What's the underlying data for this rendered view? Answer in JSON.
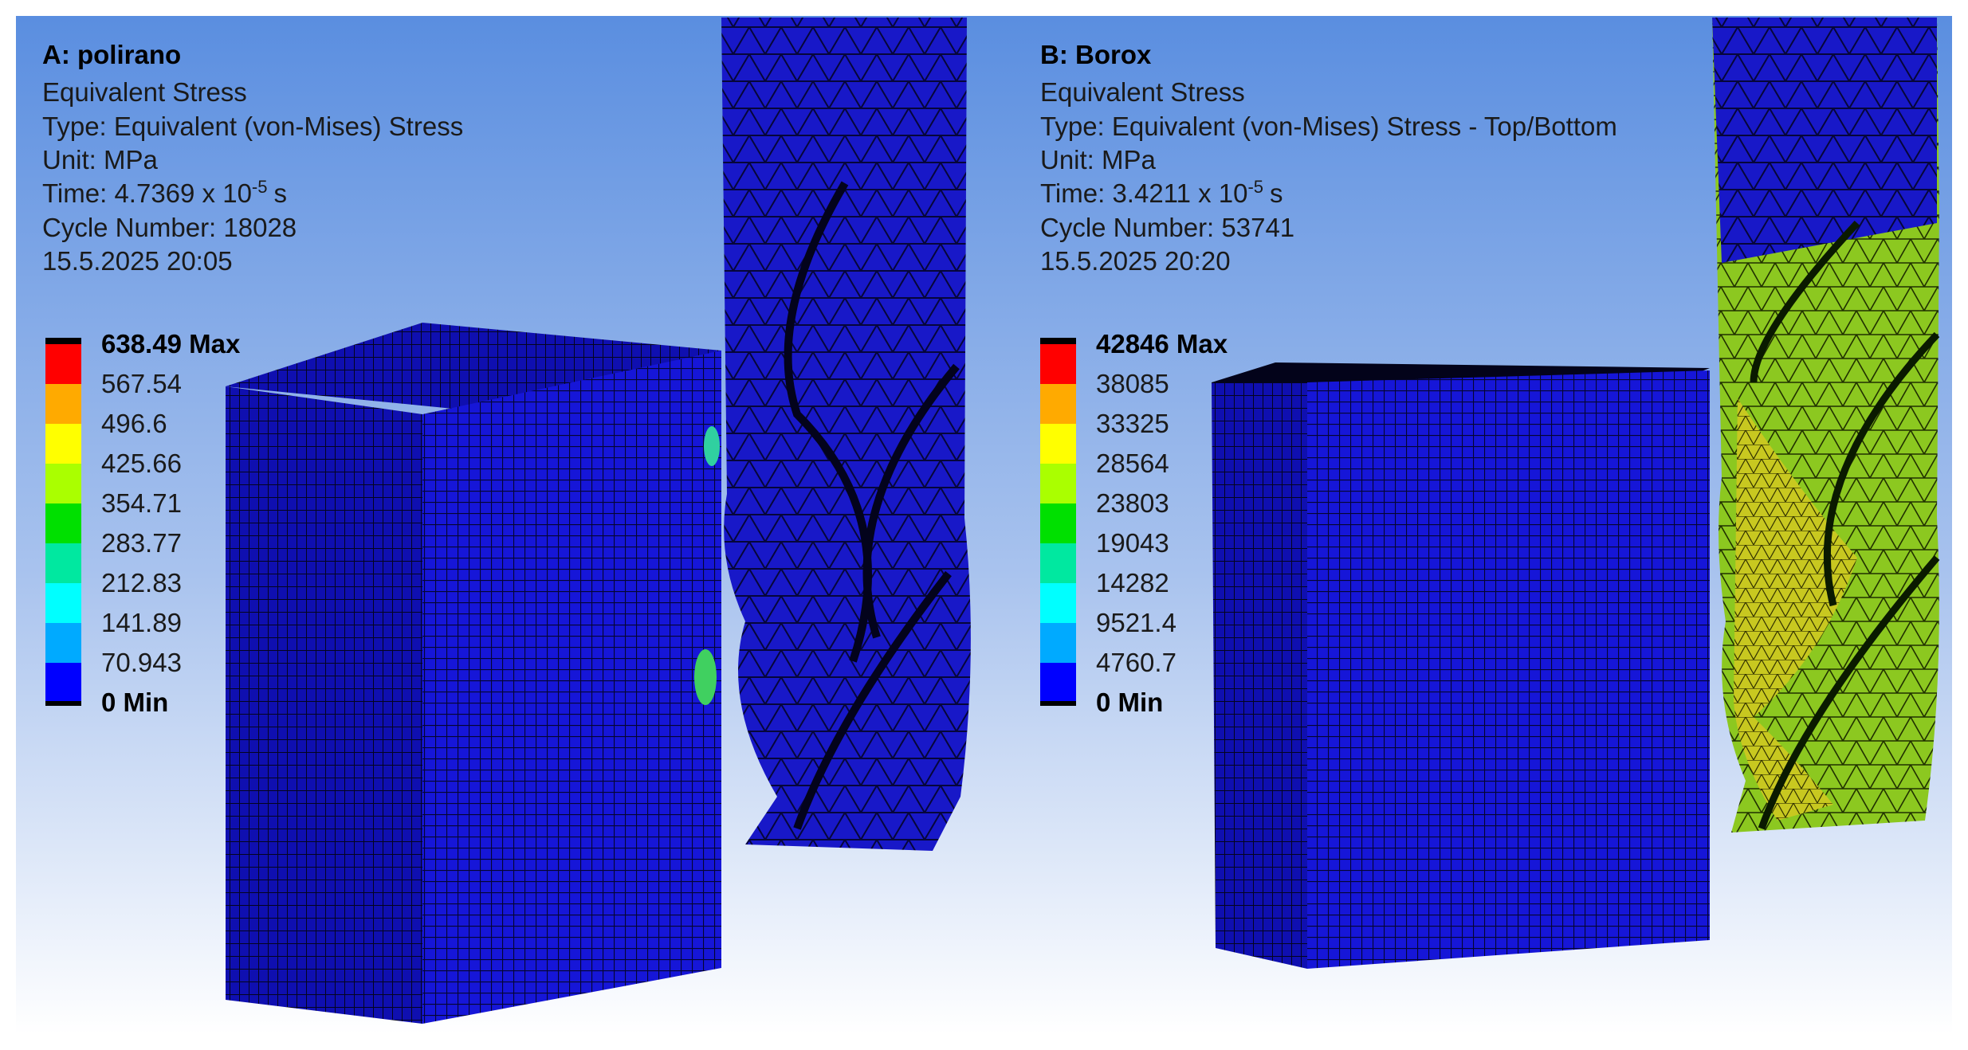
{
  "panels": [
    {
      "title": "A: polirano",
      "result": "Equivalent Stress",
      "type": "Type: Equivalent (von-Mises) Stress",
      "unit": "Unit: MPa",
      "time": {
        "text": "Time: 4.7369 x 10",
        "exponent": "-5",
        "unit": "s"
      },
      "cycle": "Cycle Number: 18028",
      "date": "15.5.2025 20:05",
      "legend": [
        "638.49 Max",
        "567.54",
        "496.6",
        "425.66",
        "354.71",
        "283.77",
        "212.83",
        "141.89",
        "70.943",
        "0 Min"
      ]
    },
    {
      "title": "B: Borox",
      "result": "Equivalent Stress",
      "type": "Type: Equivalent (von-Mises) Stress - Top/Bottom",
      "unit": "Unit: MPa",
      "time": {
        "text": "Time: 3.4211 x 10",
        "exponent": "-5",
        "unit": "s"
      },
      "cycle": "Cycle Number: 53741",
      "date": "15.5.2025 20:20",
      "legend": [
        "42846 Max",
        "38085",
        "33325",
        "28564",
        "23803",
        "19043",
        "14282",
        "9521.4",
        "4760.7",
        "0 Min"
      ]
    }
  ]
}
